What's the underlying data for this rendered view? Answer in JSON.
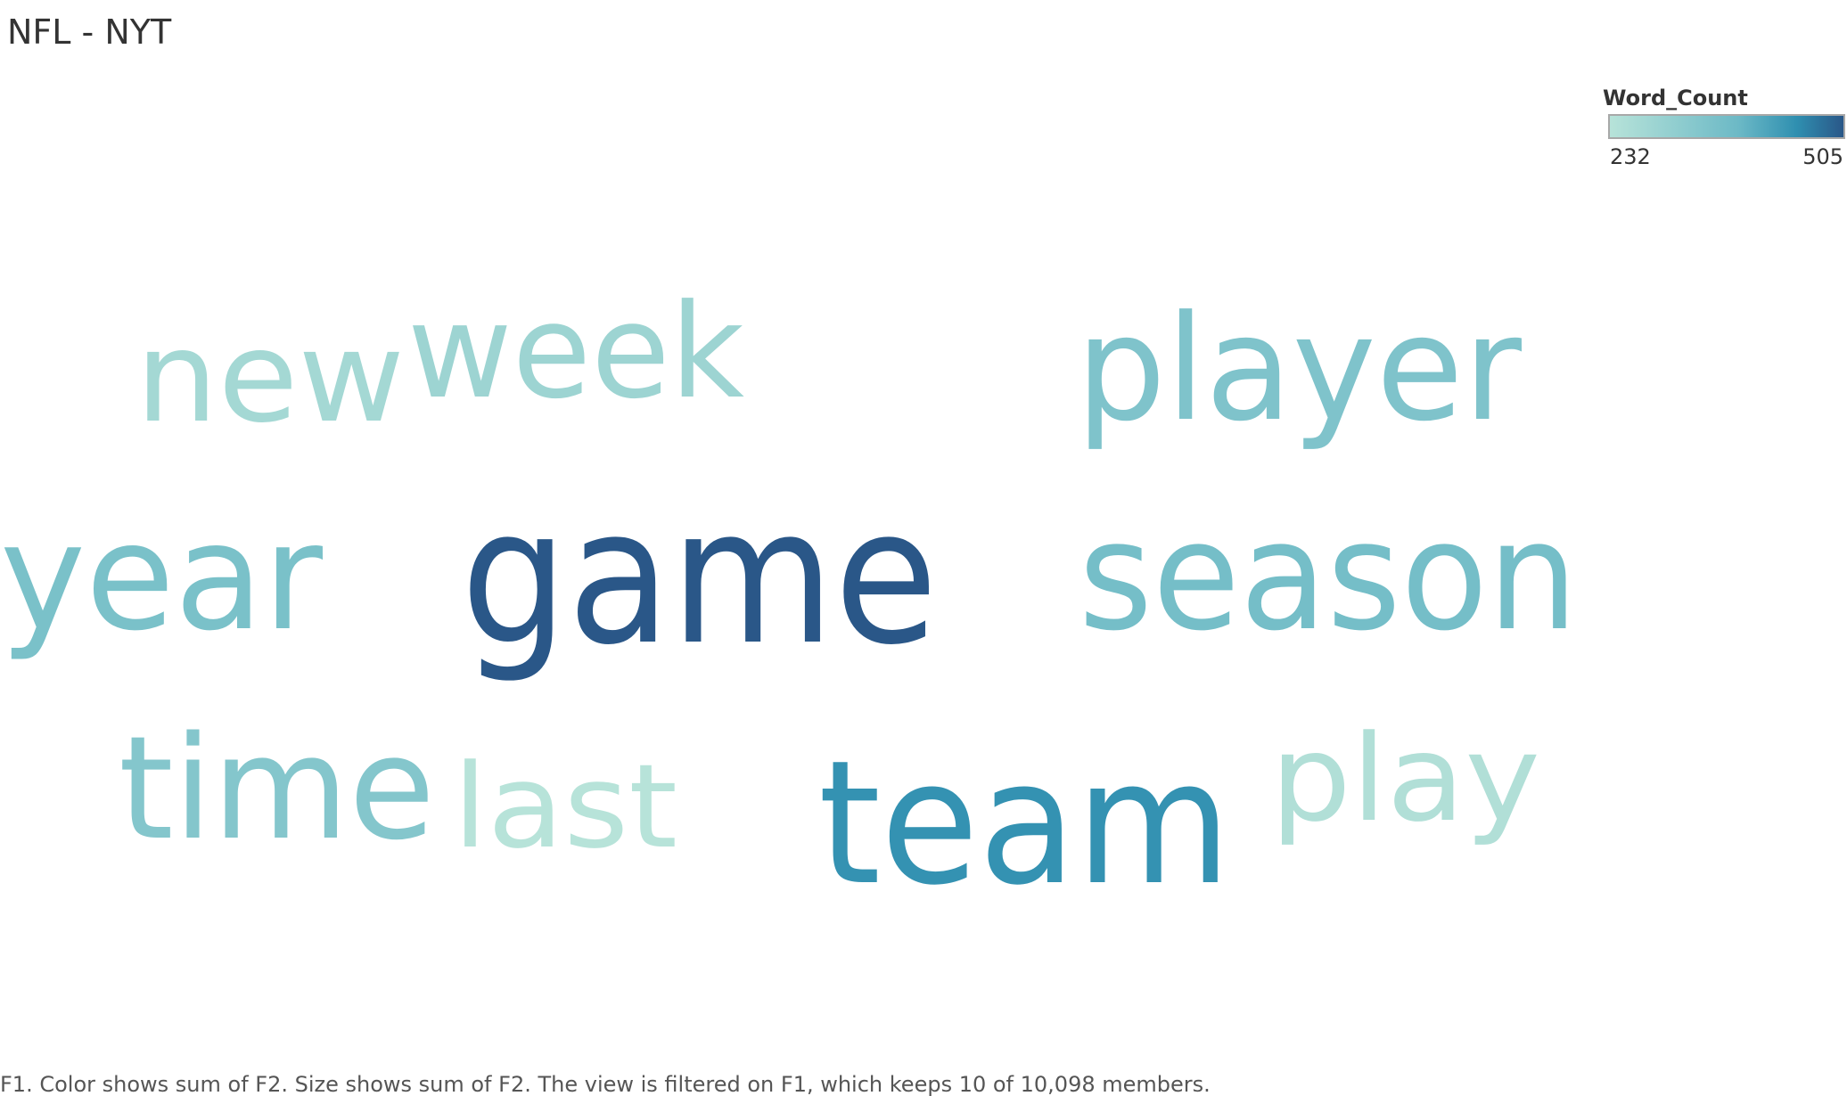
{
  "title": "NFL - NYT",
  "legend": {
    "title": "Word_Count",
    "min": 232,
    "max": 505,
    "min_label": "232",
    "max_label": "505",
    "color_low": "#b7e3d9",
    "color_high": "#2a5788"
  },
  "caption": "F1.  Color shows sum of F2.  Size shows sum of F2. The view is filtered on F1, which keeps 10 of 10,098 members.",
  "chart_data": {
    "type": "word-cloud",
    "encoding": "Color and size show Word_Count",
    "words": [
      {
        "word": "game",
        "value": 505
      },
      {
        "word": "team",
        "value": 445
      },
      {
        "word": "season",
        "value": 365
      },
      {
        "word": "year",
        "value": 355
      },
      {
        "word": "player",
        "value": 345
      },
      {
        "word": "time",
        "value": 335
      },
      {
        "word": "week",
        "value": 285
      },
      {
        "word": "new",
        "value": 270
      },
      {
        "word": "play",
        "value": 245
      },
      {
        "word": "last",
        "value": 232
      }
    ]
  }
}
